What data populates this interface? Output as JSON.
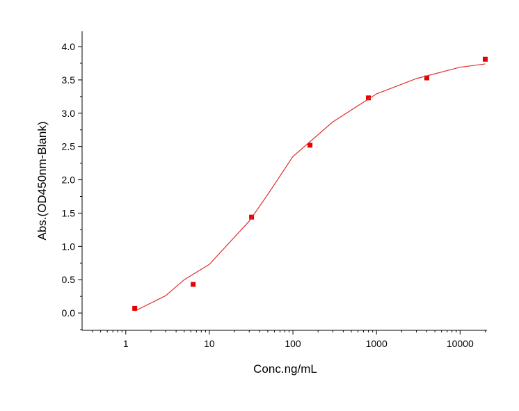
{
  "chart_data": {
    "type": "scatter",
    "x_label": "Conc.ng/mL",
    "y_label": "Abs.(OD450nm-Blank)",
    "x_scale": "log",
    "xlim": [
      0.3,
      21000
    ],
    "ylim": [
      -0.26,
      4.23
    ],
    "xticks": [
      1,
      10,
      100,
      1000,
      10000
    ],
    "xminorticks": [
      0.4,
      0.5,
      0.6,
      0.7,
      0.8,
      0.9,
      2,
      3,
      4,
      5,
      6,
      7,
      8,
      9,
      20,
      30,
      40,
      50,
      60,
      70,
      80,
      90,
      200,
      300,
      400,
      500,
      600,
      700,
      800,
      900,
      2000,
      3000,
      4000,
      5000,
      6000,
      7000,
      8000,
      9000,
      20000
    ],
    "yticks": [
      {
        "value": 0,
        "label": "0.0"
      },
      {
        "value": 0.5,
        "label": "0.5"
      },
      {
        "value": 1,
        "label": "1.0"
      },
      {
        "value": 1.5,
        "label": "1.5"
      },
      {
        "value": 2,
        "label": "2.0"
      },
      {
        "value": 2.5,
        "label": "2.5"
      },
      {
        "value": 3,
        "label": "3.0"
      },
      {
        "value": 3.5,
        "label": "3.5"
      },
      {
        "value": 4,
        "label": "4.0"
      }
    ],
    "yminorticks": [
      -0.25,
      0.25,
      0.75,
      1.25,
      1.75,
      2.25,
      2.75,
      3.25,
      3.75
    ],
    "series": [
      {
        "color": "#e60000",
        "x": [
          1.28,
          6.4,
          32,
          160,
          800,
          4000,
          20000
        ],
        "values": [
          0.07,
          0.43,
          1.44,
          2.52,
          3.23,
          3.53,
          3.81
        ]
      },
      {
        "type": "line",
        "color": "#e03030",
        "x": [
          1.28,
          3,
          5,
          10,
          30,
          50,
          100,
          300,
          1000,
          3000,
          10000,
          20000
        ],
        "values": [
          0.03,
          0.26,
          0.5,
          0.73,
          1.38,
          1.78,
          2.35,
          2.87,
          3.29,
          3.52,
          3.69,
          3.74
        ]
      }
    ]
  }
}
